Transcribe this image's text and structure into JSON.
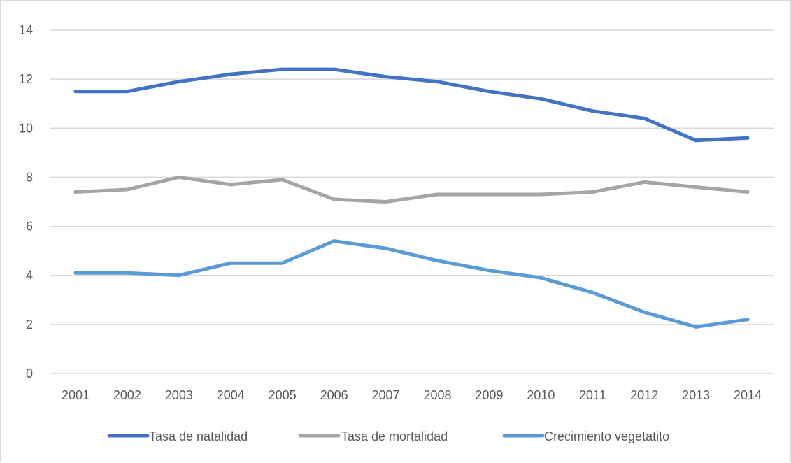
{
  "chart_data": {
    "type": "line",
    "categories": [
      "2001",
      "2002",
      "2003",
      "2004",
      "2005",
      "2006",
      "2007",
      "2008",
      "2009",
      "2010",
      "2011",
      "2012",
      "2013",
      "2014"
    ],
    "series": [
      {
        "name": "Tasa de natalidad",
        "color": "#4472c4",
        "values": [
          11.5,
          11.5,
          11.9,
          12.2,
          12.4,
          12.4,
          12.1,
          11.9,
          11.5,
          11.2,
          10.7,
          10.4,
          9.5,
          9.6
        ]
      },
      {
        "name": "Tasa de mortalidad",
        "color": "#a5a5a5",
        "values": [
          7.4,
          7.5,
          8.0,
          7.7,
          7.9,
          7.1,
          7.0,
          7.3,
          7.3,
          7.3,
          7.4,
          7.8,
          7.6,
          7.4
        ]
      },
      {
        "name": "Crecimiento vegetatito",
        "color": "#5b9bd5",
        "values": [
          4.1,
          4.1,
          4.0,
          4.5,
          4.5,
          5.4,
          5.1,
          4.6,
          4.2,
          3.9,
          3.3,
          2.5,
          1.9,
          2.2
        ]
      }
    ],
    "y_ticks": [
      0,
      2,
      4,
      6,
      8,
      10,
      12,
      14
    ],
    "ylim": [
      0,
      14
    ],
    "title": "",
    "xlabel": "",
    "ylabel": "",
    "grid": true,
    "legend_position": "bottom"
  }
}
